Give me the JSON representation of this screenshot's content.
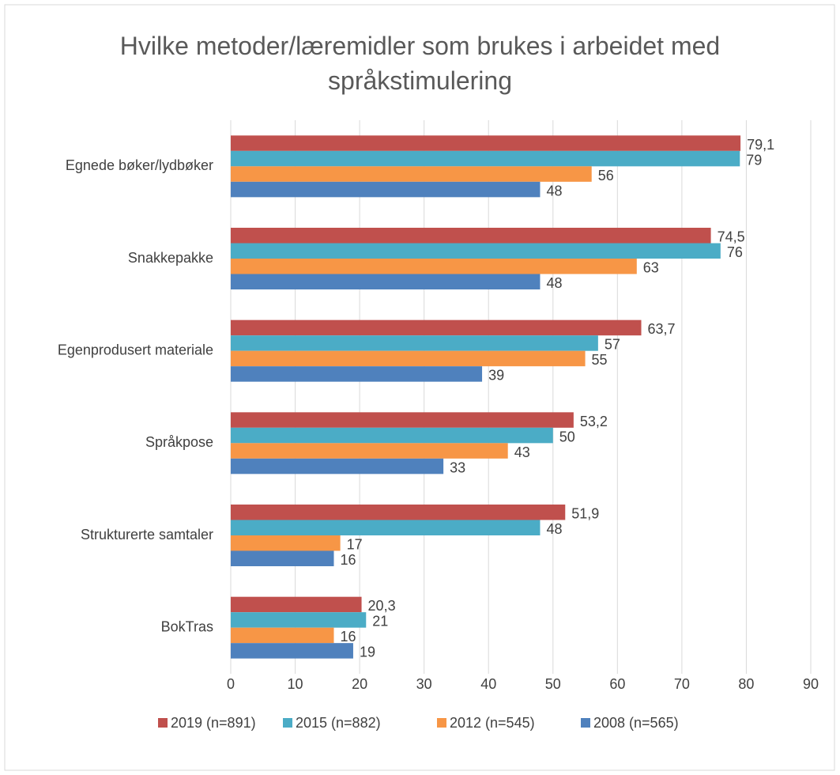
{
  "chart_data": {
    "type": "bar",
    "orientation": "horizontal",
    "title": "Hvilke metoder/læremidler som brukes i arbeidet med språkstimulering",
    "categories": [
      "Egnede bøker/lydbøker",
      "Snakkepakke",
      "Egenprodusert materiale",
      "Språkpose",
      "Strukturerte samtaler",
      "BokTras"
    ],
    "series": [
      {
        "name": "2019 (n=891)",
        "color": "#c0504d",
        "values": [
          79.1,
          74.5,
          63.7,
          53.2,
          51.9,
          20.3
        ],
        "value_labels": [
          "79,1",
          "74,5",
          "63,7",
          "53,2",
          "51,9",
          "20,3"
        ]
      },
      {
        "name": "2015 (n=882)",
        "color": "#4bacc6",
        "values": [
          79,
          76,
          57,
          50,
          48,
          21
        ]
      },
      {
        "name": "2012 (n=545)",
        "color": "#f79646",
        "values": [
          56,
          63,
          55,
          43,
          17,
          16
        ]
      },
      {
        "name": "2008 (n=565)",
        "color": "#4f81bd",
        "values": [
          48,
          48,
          39,
          33,
          16,
          19
        ]
      }
    ],
    "xlim": [
      0,
      90
    ],
    "xticks": [
      0,
      10,
      20,
      30,
      40,
      50,
      60,
      70,
      80,
      90
    ],
    "grid": true,
    "legend": "bottom"
  }
}
